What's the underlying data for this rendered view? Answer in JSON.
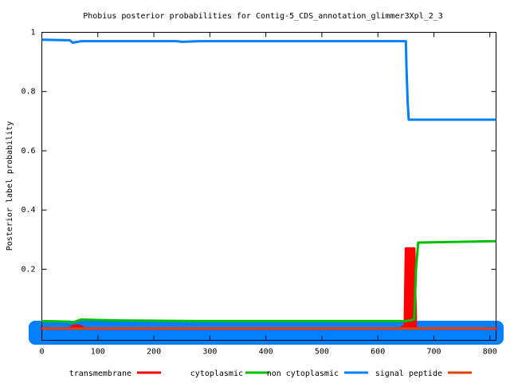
{
  "chart_data": {
    "type": "line",
    "title": "Phobius posterior probabilities for Contig-5_CDS_annotation_glimmer3Xpl_2_3",
    "ylabel": "Posterior label probability",
    "xlim": [
      0,
      811
    ],
    "ylim": [
      -0.04,
      1
    ],
    "xticks": [
      0,
      100,
      200,
      300,
      400,
      500,
      600,
      700,
      800
    ],
    "yticks": [
      0.2,
      0.4,
      0.6,
      0.8,
      1
    ],
    "series": [
      {
        "name": "transmembrane",
        "color": "#ff0000",
        "filled": true,
        "x": [
          0,
          50,
          55,
          60,
          70,
          75,
          640,
          648,
          650,
          665,
          668,
          811
        ],
        "values": [
          0,
          0,
          0.008,
          0.01,
          0.008,
          0,
          0,
          0.01,
          0.27,
          0.27,
          0,
          0
        ]
      },
      {
        "name": "cytoplasmic",
        "color": "#00c000",
        "x": [
          0,
          50,
          55,
          70,
          140,
          280,
          650,
          665,
          668,
          672,
          811
        ],
        "values": [
          0.025,
          0.023,
          0.02,
          0.03,
          0.027,
          0.025,
          0.025,
          0.03,
          0.2,
          0.29,
          0.295
        ]
      },
      {
        "name": "non cytoplasmic",
        "color": "#0080ff",
        "x": [
          0,
          50,
          55,
          70,
          240,
          250,
          280,
          650,
          651,
          653,
          655,
          811
        ],
        "values": [
          0.975,
          0.973,
          0.965,
          0.97,
          0.97,
          0.968,
          0.97,
          0.97,
          0.89,
          0.77,
          0.705,
          0.705
        ]
      },
      {
        "name": "signal peptide",
        "color": "#e04000",
        "x": [
          0,
          811
        ],
        "values": [
          0,
          0
        ]
      }
    ]
  }
}
